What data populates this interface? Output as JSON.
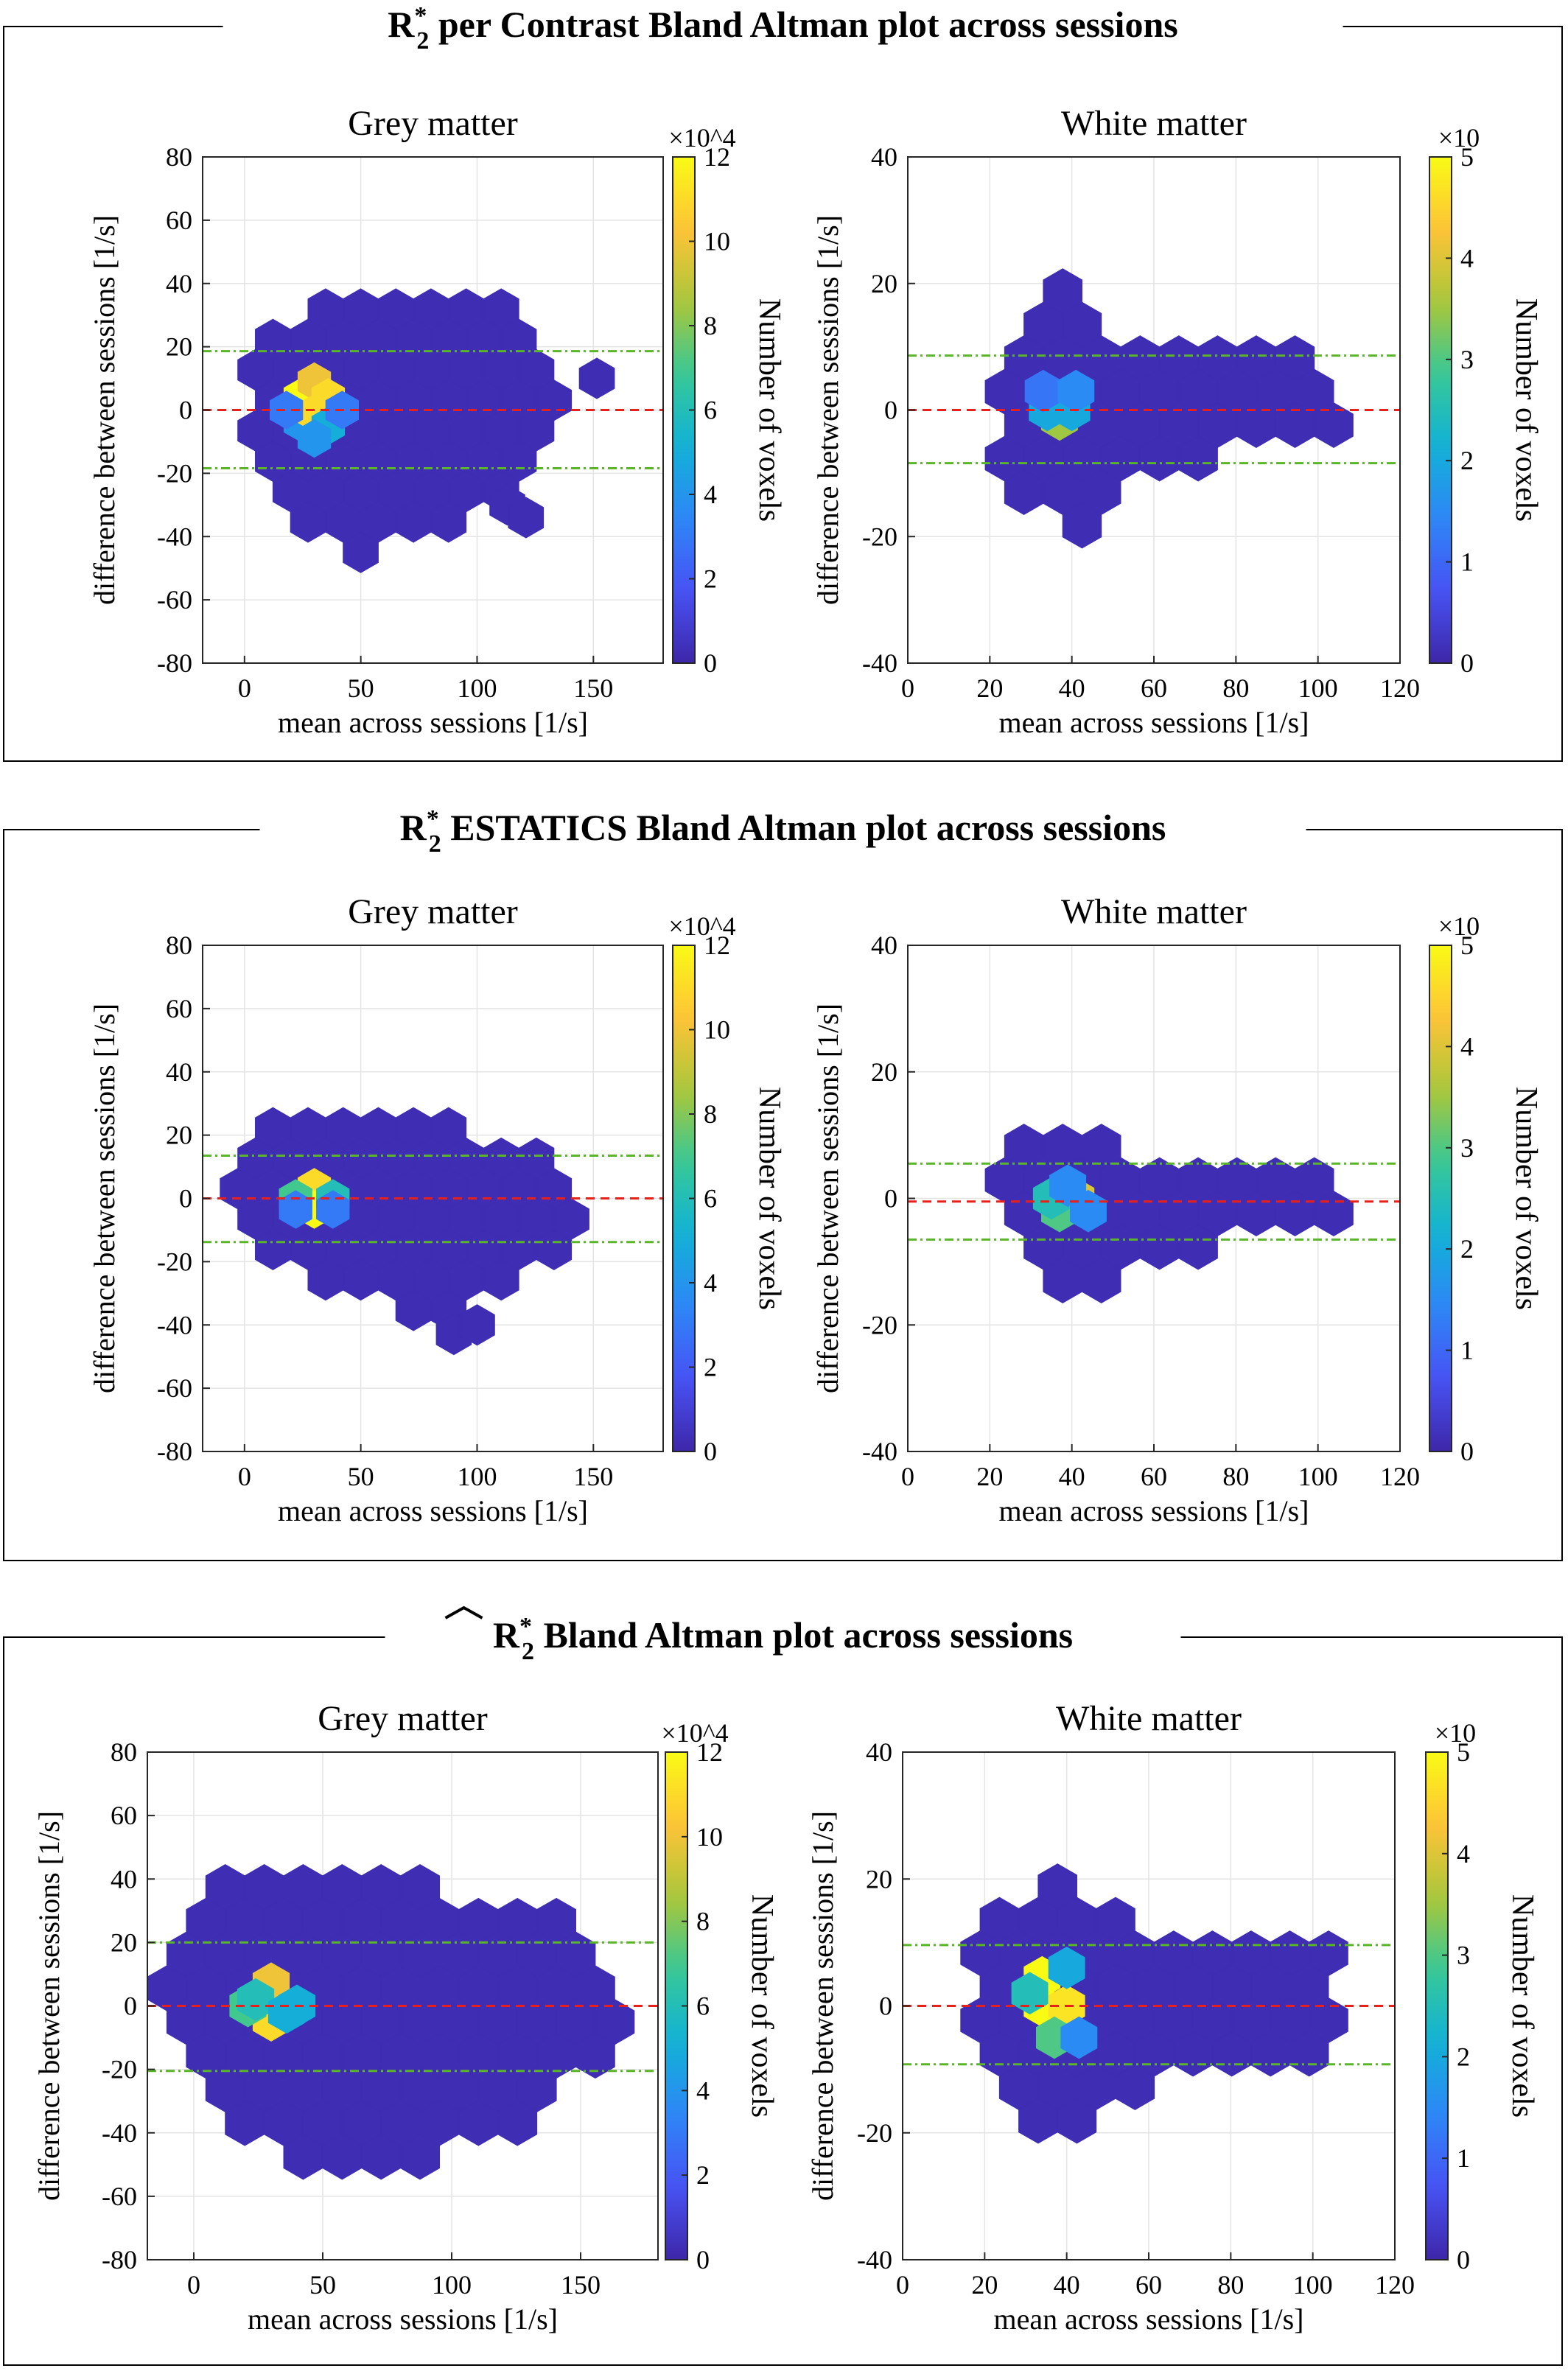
{
  "figure": {
    "panels": [
      {
        "title": "R*2 per Contrast Bland Altman plot across sessions",
        "title_main": "R",
        "title_super": "*",
        "title_sub": "2",
        "title_rest": " per Contrast Bland Altman plot across sessions",
        "title_hat": false
      },
      {
        "title": "R*2 ESTATICS Bland Altman plot across sessions",
        "title_main": "R",
        "title_super": "*",
        "title_sub": "2",
        "title_rest": " ESTATICS Bland Altman plot across sessions",
        "title_hat": false
      },
      {
        "title": "R*2 (hat) Bland Altman plot across sessions",
        "title_main": "R",
        "title_super": "*",
        "title_sub": "2",
        "title_rest": " Bland Altman plot across sessions",
        "title_hat": true
      }
    ]
  },
  "chart_data": [
    {
      "panel": 0,
      "type": "heatmap",
      "title": "Grey matter",
      "xlabel": "mean across sessions [1/s]",
      "ylabel": "difference between sessions [1/s]",
      "xlim": [
        -18,
        180
      ],
      "ylim": [
        -80,
        80
      ],
      "xticks": [
        0,
        50,
        100,
        150
      ],
      "yticks": [
        -80,
        -60,
        -40,
        -20,
        0,
        20,
        40,
        60,
        80
      ],
      "hex_size_x": 8.0,
      "colorbar": {
        "label": "Number of voxels",
        "multiplier": "×10^4",
        "range": [
          0,
          12
        ],
        "ticks": [
          0,
          2,
          4,
          6,
          8,
          10,
          12
        ]
      },
      "mean_line": 0,
      "limits_of_agreement": [
        18.6,
        -18.4
      ],
      "hull": [
        [
          16,
          26
        ],
        [
          22,
          34
        ],
        [
          35,
          43
        ],
        [
          48,
          38
        ],
        [
          62,
          38
        ],
        [
          80,
          38
        ],
        [
          110,
          34
        ],
        [
          127,
          28
        ],
        [
          130,
          17
        ],
        [
          140,
          5
        ],
        [
          150,
          0
        ],
        [
          142,
          -4
        ],
        [
          135,
          -12
        ],
        [
          128,
          -22
        ],
        [
          110,
          -27
        ],
        [
          98,
          -30
        ],
        [
          90,
          -38
        ],
        [
          80,
          -45
        ],
        [
          60,
          -45
        ],
        [
          45,
          -47
        ],
        [
          32,
          -44
        ],
        [
          25,
          -38
        ],
        [
          16,
          -28
        ],
        [
          10,
          -18
        ],
        [
          0,
          -6
        ],
        [
          0,
          6
        ],
        [
          5,
          18
        ]
      ],
      "outliers": [
        [
          151.5,
          10
        ],
        [
          113,
          -30
        ],
        [
          121,
          -34
        ]
      ],
      "hot": [
        [
          24,
          4,
          12,
          "v"
        ],
        [
          30,
          9,
          10,
          "v"
        ],
        [
          36,
          4,
          11,
          "v"
        ],
        [
          24,
          -4,
          4,
          "v"
        ],
        [
          30,
          -1,
          11,
          "v"
        ],
        [
          36,
          -5,
          5,
          "v"
        ],
        [
          30,
          -9,
          4,
          "v"
        ],
        [
          18,
          0,
          3,
          "v"
        ],
        [
          42,
          0,
          3,
          "v"
        ]
      ]
    },
    {
      "panel": 0,
      "type": "heatmap",
      "title": "White matter",
      "xlabel": "mean across sessions [1/s]",
      "ylabel": "difference between sessions [1/s]",
      "xlim": [
        0,
        120
      ],
      "ylim": [
        -40,
        40
      ],
      "xticks": [
        0,
        20,
        40,
        60,
        80,
        100,
        120
      ],
      "yticks": [
        -40,
        -20,
        0,
        20,
        40
      ],
      "hex_size_x": 5.0,
      "colorbar": {
        "label": "Number of voxels",
        "multiplier": "×10",
        "range": [
          0,
          5
        ],
        "ticks": [
          0,
          1,
          2,
          3,
          4,
          5
        ]
      },
      "mean_line": 0,
      "limits_of_agreement": [
        8.6,
        -8.4
      ],
      "hull": [
        [
          22,
          12
        ],
        [
          32,
          18
        ],
        [
          38,
          22
        ],
        [
          43,
          18
        ],
        [
          48,
          14
        ],
        [
          60,
          11
        ],
        [
          68,
          10
        ],
        [
          100,
          10
        ],
        [
          104,
          5
        ],
        [
          104,
          -5
        ],
        [
          100,
          -7
        ],
        [
          70,
          -8
        ],
        [
          60,
          -11
        ],
        [
          48,
          -15
        ],
        [
          40,
          -20
        ],
        [
          34,
          -18
        ],
        [
          27,
          -13
        ],
        [
          22,
          -8
        ],
        [
          20,
          0
        ]
      ],
      "outliers": [],
      "hot": [
        [
          37,
          1.5,
          2.5,
          "v"
        ],
        [
          37,
          -1.5,
          3.5,
          "v"
        ],
        [
          40,
          0,
          2,
          "v"
        ],
        [
          34,
          0,
          2,
          "v"
        ],
        [
          33,
          3,
          1.2,
          "v"
        ],
        [
          41,
          3,
          1.5,
          "v"
        ]
      ]
    },
    {
      "panel": 1,
      "type": "heatmap",
      "title": "Grey matter",
      "xlabel": "mean across sessions [1/s]",
      "ylabel": "difference between sessions [1/s]",
      "xlim": [
        -18,
        180
      ],
      "ylim": [
        -80,
        80
      ],
      "xticks": [
        0,
        50,
        100,
        150
      ],
      "yticks": [
        -80,
        -60,
        -40,
        -20,
        0,
        20,
        40,
        60,
        80
      ],
      "hex_size_x": 8.0,
      "colorbar": {
        "label": "Number of voxels",
        "multiplier": "×10^4",
        "range": [
          0,
          12
        ],
        "ticks": [
          0,
          2,
          4,
          6,
          8,
          10,
          12
        ]
      },
      "mean_line": 0,
      "limits_of_agreement": [
        13.5,
        -13.8
      ],
      "hull": [
        [
          0,
          18
        ],
        [
          8,
          25
        ],
        [
          20,
          30
        ],
        [
          40,
          28
        ],
        [
          60,
          25
        ],
        [
          80,
          25
        ],
        [
          100,
          22
        ],
        [
          120,
          18
        ],
        [
          130,
          12
        ],
        [
          145,
          5
        ],
        [
          157,
          -8
        ],
        [
          150,
          -12
        ],
        [
          140,
          -15
        ],
        [
          128,
          -22
        ],
        [
          110,
          -28
        ],
        [
          100,
          -35
        ],
        [
          90,
          -40
        ],
        [
          75,
          -38
        ],
        [
          60,
          -35
        ],
        [
          40,
          -30
        ],
        [
          25,
          -25
        ],
        [
          10,
          -18
        ],
        [
          -5,
          -5
        ],
        [
          -5,
          5
        ]
      ],
      "outliers": [
        [
          90,
          -43
        ],
        [
          100,
          -40
        ]
      ],
      "hot": [
        [
          30,
          3.5,
          11,
          "h"
        ],
        [
          30,
          -3.5,
          12,
          "v"
        ],
        [
          22,
          0,
          7,
          "v"
        ],
        [
          38,
          0,
          6,
          "v"
        ],
        [
          22,
          -3.5,
          3,
          "v"
        ],
        [
          38,
          -3.5,
          3,
          "v"
        ]
      ]
    },
    {
      "panel": 1,
      "type": "heatmap",
      "title": "White matter",
      "xlabel": "mean across sessions [1/s]",
      "ylabel": "difference between sessions [1/s]",
      "xlim": [
        0,
        120
      ],
      "ylim": [
        -40,
        40
      ],
      "xticks": [
        0,
        20,
        40,
        60,
        80,
        100,
        120
      ],
      "yticks": [
        -40,
        -20,
        0,
        20,
        40
      ],
      "hex_size_x": 5.0,
      "colorbar": {
        "label": "Number of voxels",
        "multiplier": "×10",
        "range": [
          0,
          5
        ],
        "ticks": [
          0,
          1,
          2,
          3,
          4,
          5
        ]
      },
      "mean_line": -0.5,
      "limits_of_agreement": [
        5.5,
        -6.5
      ],
      "hull": [
        [
          22,
          4
        ],
        [
          28,
          9
        ],
        [
          36,
          12
        ],
        [
          44,
          12
        ],
        [
          55,
          7
        ],
        [
          70,
          4
        ],
        [
          90,
          7
        ],
        [
          100,
          6
        ],
        [
          107,
          2
        ],
        [
          107,
          -2
        ],
        [
          100,
          -6
        ],
        [
          80,
          -7
        ],
        [
          60,
          -9
        ],
        [
          50,
          -13
        ],
        [
          40,
          -15
        ],
        [
          30,
          -12
        ],
        [
          22,
          -5
        ],
        [
          18,
          0
        ]
      ],
      "outliers": [],
      "hot": [
        [
          41,
          0,
          4,
          "v"
        ],
        [
          37,
          -2,
          3,
          "v"
        ],
        [
          35,
          0,
          2.5,
          "v"
        ],
        [
          44,
          -2,
          1.5,
          "v"
        ],
        [
          39,
          2,
          1.5,
          "v"
        ]
      ]
    },
    {
      "panel": 2,
      "type": "heatmap",
      "title": "Grey matter",
      "xlabel": "mean across sessions [1/s]",
      "ylabel": "difference between sessions [1/s]",
      "xlim": [
        -18,
        180
      ],
      "ylim": [
        -80,
        80
      ],
      "xticks": [
        0,
        50,
        100,
        150
      ],
      "yticks": [
        -80,
        -60,
        -40,
        -20,
        0,
        20,
        40,
        60,
        80
      ],
      "hex_size_x": 8.0,
      "colorbar": {
        "label": "Number of voxels",
        "multiplier": "×10^4",
        "range": [
          0,
          12
        ],
        "ticks": [
          0,
          2,
          4,
          6,
          8,
          10,
          12
        ]
      },
      "mean_line": 0,
      "limits_of_agreement": [
        20,
        -20.5
      ],
      "hull": [
        [
          -12,
          10
        ],
        [
          0,
          25
        ],
        [
          8,
          40
        ],
        [
          30,
          42
        ],
        [
          60,
          42
        ],
        [
          90,
          38
        ],
        [
          110,
          33
        ],
        [
          130,
          35
        ],
        [
          142,
          28
        ],
        [
          155,
          22
        ],
        [
          165,
          10
        ],
        [
          165,
          -12
        ],
        [
          155,
          -22
        ],
        [
          140,
          -30
        ],
        [
          120,
          -40
        ],
        [
          100,
          -48
        ],
        [
          80,
          -57
        ],
        [
          60,
          -52
        ],
        [
          40,
          -50
        ],
        [
          25,
          -42
        ],
        [
          10,
          -30
        ],
        [
          -10,
          -15
        ]
      ],
      "outliers": [],
      "hot": [
        [
          30,
          7,
          10,
          "v"
        ],
        [
          30,
          -4.5,
          11,
          "v"
        ],
        [
          21,
          0,
          7,
          "v"
        ],
        [
          40,
          0,
          5,
          "v"
        ],
        [
          24,
          2,
          6,
          "v"
        ],
        [
          36,
          -2,
          5,
          "v"
        ]
      ]
    },
    {
      "panel": 2,
      "type": "heatmap",
      "title": "White matter",
      "xlabel": "mean across sessions [1/s]",
      "ylabel": "difference between sessions [1/s]",
      "xlim": [
        0,
        120
      ],
      "ylim": [
        -40,
        40
      ],
      "xticks": [
        0,
        20,
        40,
        60,
        80,
        100,
        120
      ],
      "yticks": [
        -40,
        -20,
        0,
        20,
        40
      ],
      "hex_size_x": 5.0,
      "colorbar": {
        "label": "Number of voxels",
        "multiplier": "×10",
        "range": [
          0,
          5
        ],
        "ticks": [
          0,
          1,
          2,
          3,
          4,
          5
        ]
      },
      "mean_line": 0,
      "limits_of_agreement": [
        9.6,
        -9.2
      ],
      "hull": [
        [
          16,
          4
        ],
        [
          22,
          13
        ],
        [
          32,
          20
        ],
        [
          37,
          25
        ],
        [
          43,
          20
        ],
        [
          48,
          18
        ],
        [
          58,
          12
        ],
        [
          70,
          10
        ],
        [
          104,
          10
        ],
        [
          106,
          0
        ],
        [
          104,
          -9
        ],
        [
          70,
          -10
        ],
        [
          58,
          -14
        ],
        [
          48,
          -18
        ],
        [
          38,
          -23
        ],
        [
          30,
          -18
        ],
        [
          22,
          -13
        ],
        [
          16,
          -5
        ]
      ],
      "outliers": [],
      "hot": [
        [
          34,
          4.5,
          5,
          "v"
        ],
        [
          34,
          0,
          5,
          "v"
        ],
        [
          40,
          0,
          4.7,
          "v"
        ],
        [
          40,
          6,
          2,
          "v"
        ],
        [
          37,
          -5,
          3,
          "v"
        ],
        [
          31,
          2,
          2.5,
          "v"
        ],
        [
          43,
          -5,
          1.5,
          "v"
        ]
      ]
    }
  ]
}
